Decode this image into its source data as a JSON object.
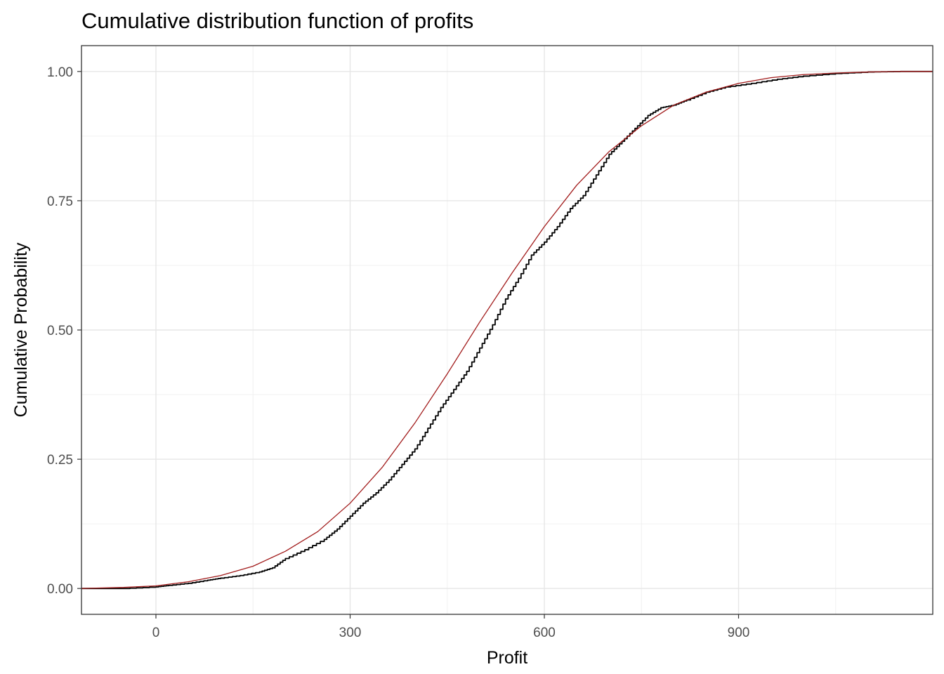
{
  "chart_data": {
    "type": "line",
    "title": "Cumulative distribution function of profits",
    "xlabel": "Profit",
    "ylabel": "Cumulative Probability",
    "xlim": [
      -115,
      1200
    ],
    "ylim": [
      -0.05,
      1.05
    ],
    "x_ticks": [
      {
        "value": 0,
        "label": "0"
      },
      {
        "value": 300,
        "label": "300"
      },
      {
        "value": 600,
        "label": "600"
      },
      {
        "value": 900,
        "label": "900"
      }
    ],
    "y_ticks": [
      {
        "value": 0,
        "label": "0.00"
      },
      {
        "value": 0.25,
        "label": "0.25"
      },
      {
        "value": 0.5,
        "label": "0.50"
      },
      {
        "value": 0.75,
        "label": "0.75"
      },
      {
        "value": 1,
        "label": "1.00"
      }
    ],
    "grid": true,
    "series": [
      {
        "color": "#000000",
        "step": true,
        "x": [
          -115,
          -50,
          0,
          20,
          50,
          80,
          100,
          130,
          160,
          180,
          200,
          230,
          260,
          280,
          300,
          320,
          340,
          360,
          380,
          400,
          420,
          440,
          460,
          480,
          500,
          520,
          540,
          560,
          580,
          600,
          620,
          640,
          660,
          680,
          700,
          720,
          740,
          760,
          780,
          800,
          820,
          850,
          880,
          920,
          960,
          1000,
          1050,
          1100,
          1150,
          1200
        ],
        "y": [
          0.0,
          0.0,
          0.003,
          0.006,
          0.01,
          0.016,
          0.02,
          0.025,
          0.032,
          0.04,
          0.058,
          0.075,
          0.095,
          0.115,
          0.14,
          0.165,
          0.185,
          0.21,
          0.24,
          0.27,
          0.31,
          0.35,
          0.385,
          0.42,
          0.465,
          0.51,
          0.56,
          0.6,
          0.645,
          0.67,
          0.7,
          0.735,
          0.76,
          0.8,
          0.84,
          0.865,
          0.89,
          0.915,
          0.93,
          0.935,
          0.945,
          0.96,
          0.97,
          0.977,
          0.985,
          0.991,
          0.996,
          0.999,
          1.0,
          1.0
        ]
      },
      {
        "color": "#a11a1a",
        "step": false,
        "x": [
          -115,
          -50,
          0,
          50,
          100,
          150,
          200,
          250,
          300,
          350,
          400,
          450,
          500,
          550,
          600,
          650,
          700,
          750,
          800,
          850,
          900,
          950,
          1000,
          1050,
          1100,
          1150,
          1200
        ],
        "y": [
          0.0,
          0.002,
          0.005,
          0.013,
          0.025,
          0.043,
          0.072,
          0.11,
          0.165,
          0.235,
          0.32,
          0.415,
          0.515,
          0.61,
          0.7,
          0.78,
          0.845,
          0.895,
          0.935,
          0.96,
          0.977,
          0.988,
          0.994,
          0.997,
          0.999,
          1.0,
          1.0
        ]
      }
    ]
  }
}
